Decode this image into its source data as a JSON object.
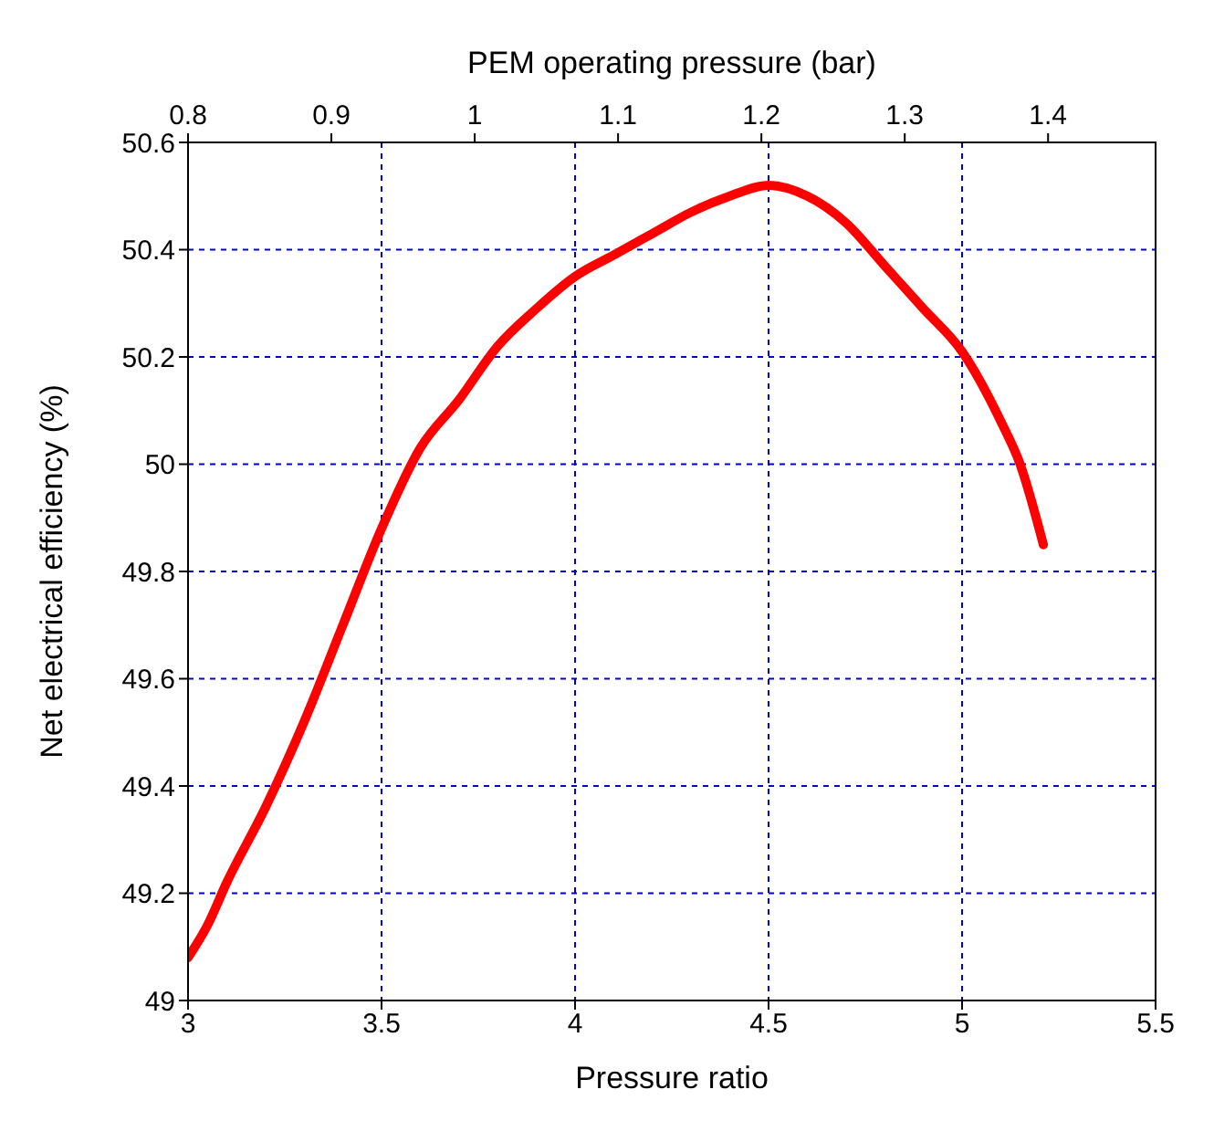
{
  "chart_data": {
    "type": "line",
    "xlabel": "Pressure ratio",
    "x2label": "PEM operating  pressure (bar)",
    "ylabel": "Net electrical efficiency (%)",
    "x": [
      3,
      3.05,
      3.1,
      3.2,
      3.3,
      3.4,
      3.5,
      3.6,
      3.7,
      3.8,
      3.9,
      4,
      4.1,
      4.2,
      4.3,
      4.4,
      4.5,
      4.6,
      4.7,
      4.8,
      4.9,
      5,
      5.1,
      5.15,
      5.21
    ],
    "series": [
      {
        "color": "#ff0000",
        "values": [
          49.08,
          49.14,
          49.22,
          49.36,
          49.52,
          49.7,
          49.88,
          50.03,
          50.12,
          50.22,
          50.29,
          50.35,
          50.39,
          50.43,
          50.47,
          50.5,
          50.52,
          50.5,
          50.45,
          50.37,
          50.29,
          50.21,
          50.08,
          50.0,
          49.85
        ]
      }
    ],
    "xlim": [
      3,
      5.5
    ],
    "xticks": [
      3,
      3.5,
      4,
      4.5,
      5,
      5.5
    ],
    "x2lim": [
      0.8,
      1.475
    ],
    "x2ticks": [
      0.8,
      0.9,
      1,
      1.1,
      1.2,
      1.3,
      1.4
    ],
    "ylim": [
      49,
      50.6
    ],
    "yticks": [
      49,
      49.2,
      49.4,
      49.6,
      49.8,
      50,
      50.2,
      50.4,
      50.6
    ],
    "grid": true,
    "marker": "none",
    "line_style": "solid"
  }
}
